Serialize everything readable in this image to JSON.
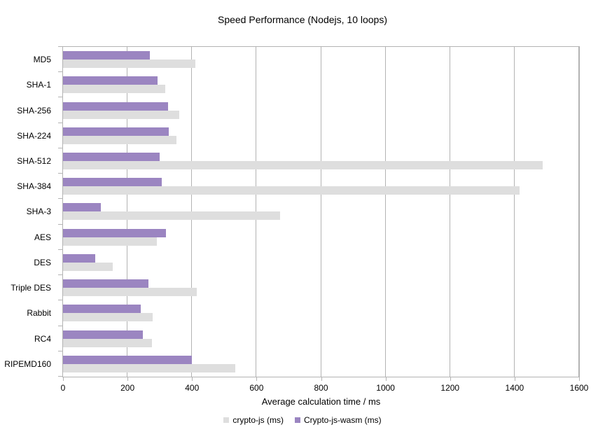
{
  "chart_data": {
    "type": "bar",
    "orientation": "horizontal",
    "title": "Speed Performance (Nodejs, 10 loops)",
    "xlabel": "Average calculation time / ms",
    "ylabel": "",
    "xlim": [
      0,
      1600
    ],
    "xticks": [
      0,
      200,
      400,
      600,
      800,
      1000,
      1200,
      1400,
      1600
    ],
    "grid": true,
    "legend_position": "bottom",
    "categories": [
      "MD5",
      "SHA-1",
      "SHA-256",
      "SHA-224",
      "SHA-512",
      "SHA-384",
      "SHA-3",
      "AES",
      "DES",
      "Triple DES",
      "Rabbit",
      "RC4",
      "RIPEMD160"
    ],
    "series": [
      {
        "name": "crypto-js (ms)",
        "color": "#dedede",
        "values": [
          410,
          318,
          360,
          351,
          1487,
          1416,
          673,
          290,
          155,
          414,
          277,
          275,
          534
        ]
      },
      {
        "name": "Crypto-js-wasm (ms)",
        "color": "#9b85c1",
        "values": [
          269,
          294,
          326,
          327,
          299,
          307,
          118,
          319,
          99,
          264,
          242,
          248,
          400
        ]
      }
    ],
    "colors": {
      "grid": "#b3b3b3",
      "axis": "#b3b3b3",
      "text": "#000000",
      "background": "#ffffff"
    }
  }
}
